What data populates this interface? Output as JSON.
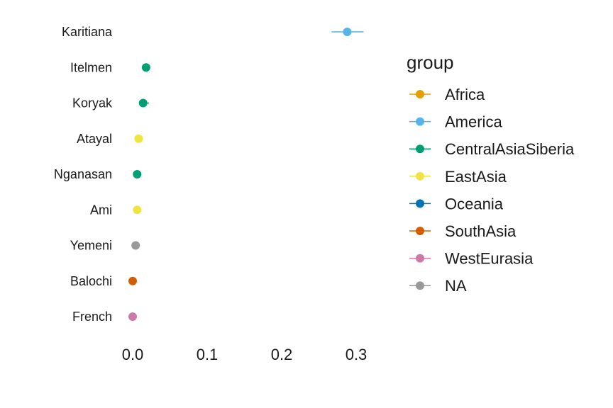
{
  "chart_data": {
    "type": "scatter",
    "title": "",
    "xlabel": "",
    "ylabel": "",
    "xlim": [
      -0.01,
      0.325
    ],
    "x_ticks": [
      "0.0",
      "0.1",
      "0.2",
      "0.3"
    ],
    "x_tick_values": [
      0.0,
      0.1,
      0.2,
      0.3
    ],
    "grid": false,
    "legend_position": "right",
    "legend_title": "group",
    "groups": [
      {
        "name": "Africa",
        "color": "#E69F00"
      },
      {
        "name": "America",
        "color": "#56B4E9"
      },
      {
        "name": "CentralAsiaSiberia",
        "color": "#009E73"
      },
      {
        "name": "EastAsia",
        "color": "#F0E442"
      },
      {
        "name": "Oceania",
        "color": "#0072B2"
      },
      {
        "name": "SouthAsia",
        "color": "#D55E00"
      },
      {
        "name": "WestEurasia",
        "color": "#CC79A7"
      },
      {
        "name": "NA",
        "color": "#999999"
      }
    ],
    "points": [
      {
        "label": "Karitiana",
        "value": 0.288,
        "err_low": 0.267,
        "err_high": 0.31,
        "group": "America"
      },
      {
        "label": "Itelmen",
        "value": 0.018,
        "err_low": 0.018,
        "err_high": 0.018,
        "group": "CentralAsiaSiberia"
      },
      {
        "label": "Koryak",
        "value": 0.014,
        "err_low": 0.012,
        "err_high": 0.022,
        "group": "CentralAsiaSiberia"
      },
      {
        "label": "Atayal",
        "value": 0.008,
        "err_low": 0.008,
        "err_high": 0.008,
        "group": "EastAsia"
      },
      {
        "label": "Nganasan",
        "value": 0.006,
        "err_low": 0.006,
        "err_high": 0.006,
        "group": "CentralAsiaSiberia"
      },
      {
        "label": "Ami",
        "value": 0.006,
        "err_low": 0.006,
        "err_high": 0.006,
        "group": "EastAsia"
      },
      {
        "label": "Yemeni",
        "value": 0.004,
        "err_low": 0.004,
        "err_high": 0.004,
        "group": "NA"
      },
      {
        "label": "Balochi",
        "value": 0.0,
        "err_low": 0.0,
        "err_high": 0.0,
        "group": "SouthAsia"
      },
      {
        "label": "French",
        "value": 0.0,
        "err_low": 0.0,
        "err_high": 0.0,
        "group": "WestEurasia"
      }
    ]
  }
}
